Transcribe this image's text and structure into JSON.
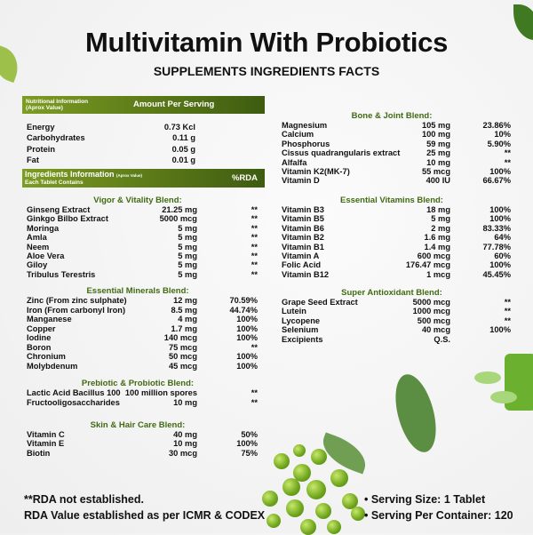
{
  "title": "Multivitamin With Probiotics",
  "subtitle": "SUPPLEMENTS INGREDIENTS FACTS",
  "nutrition_header": {
    "label_line1": "Nutritional Information",
    "label_line2": "(Aprox Value)",
    "amount_label": "Amount Per Serving"
  },
  "nutrition": [
    {
      "name": "Energy",
      "amount": "0.73 Kcl"
    },
    {
      "name": "Carbohydrates",
      "amount": "0.11 g"
    },
    {
      "name": "Protein",
      "amount": "0.05 g"
    },
    {
      "name": "Fat",
      "amount": "0.01 g"
    }
  ],
  "ingredients_header": {
    "label": "Ingredients  Information",
    "note": "(Aprox Value)",
    "sub": "Each Tablet Contains",
    "rda_label": "%RDA"
  },
  "blends": [
    {
      "title": "Vigor & Vitality Blend:",
      "items": [
        [
          "Ginseng Extract",
          "21.25 mg",
          "**"
        ],
        [
          "Ginkgo Bilbo Extract",
          "5000 mcg",
          "**"
        ],
        [
          "Moringa",
          "5 mg",
          "**"
        ],
        [
          "Amla",
          "5 mg",
          "**"
        ],
        [
          "Neem",
          "5 mg",
          "**"
        ],
        [
          "Aloe Vera",
          "5 mg",
          "**"
        ],
        [
          "Giloy",
          "5 mg",
          "**"
        ],
        [
          "Tribulus Terestris",
          "5 mg",
          "**"
        ]
      ]
    },
    {
      "title": "Essential Minerals Blend:",
      "items": [
        [
          "Zinc (From zinc sulphate)",
          "12 mg",
          "70.59%"
        ],
        [
          "Iron (From carbonyl Iron)",
          "8.5 mg",
          "44.74%"
        ],
        [
          "Manganese",
          "4 mg",
          "100%"
        ],
        [
          "Copper",
          "1.7 mg",
          "100%"
        ],
        [
          "Iodine",
          "140 mcg",
          "100%"
        ],
        [
          "Boron",
          "75 mcg",
          "**"
        ],
        [
          "Chronium",
          "50 mcg",
          "100%"
        ],
        [
          "Molybdenum",
          "45 mcg",
          "100%"
        ]
      ]
    },
    {
      "title": "Prebiotic & Probiotic Blend:",
      "items": [
        [
          "Lactic Acid Bacillus 100",
          "100 million spores",
          "**"
        ],
        [
          "Fructooligosaccharides",
          "10 mg",
          "**"
        ]
      ]
    },
    {
      "title": "Skin & Hair Care Blend:",
      "items": [
        [
          "Vitamin C",
          "40 mg",
          "50%"
        ],
        [
          "Vitamin E",
          "10 mg",
          "100%"
        ],
        [
          "Biotin",
          "30 mcg",
          "75%"
        ]
      ]
    },
    {
      "title": "Bone & Joint Blend:",
      "items": [
        [
          "Magnesium",
          "105 mg",
          "23.86%"
        ],
        [
          "Calcium",
          "100 mg",
          "10%"
        ],
        [
          "Phosphorus",
          "59 mg",
          "5.90%"
        ],
        [
          "Cissus quadrangularis extract",
          "25 mg",
          "**"
        ],
        [
          "Alfalfa",
          "10 mg",
          "**"
        ],
        [
          "Vitamin K2(MK-7)",
          "55 mcg",
          "100%"
        ],
        [
          "Vitamin D",
          "400 IU",
          "66.67%"
        ]
      ]
    },
    {
      "title": "Essential Vitamins Blend:",
      "items": [
        [
          "Vitamin B3",
          "18 mg",
          "100%"
        ],
        [
          "Vitamin B5",
          "5 mg",
          "100%"
        ],
        [
          "Vitamin B6",
          "2 mg",
          "83.33%"
        ],
        [
          "Vitamin B2",
          "1.6 mg",
          "64%"
        ],
        [
          "Vitamin B1",
          "1.4 mg",
          "77.78%"
        ],
        [
          "Vitamin A",
          "600 mcg",
          "60%"
        ],
        [
          "Folic Acid",
          "176.47 mcg",
          "100%"
        ],
        [
          "Vitamin B12",
          "1 mcg",
          "45.45%"
        ]
      ]
    },
    {
      "title": "Super Antioxidant Blend:",
      "items": [
        [
          "Grape Seed Extract",
          "5000 mcg",
          "**"
        ],
        [
          "Lutein",
          "1000 mcg",
          "**"
        ],
        [
          "Lycopene",
          "500 mcg",
          "**"
        ],
        [
          "Selenium",
          "40 mcg",
          "100%"
        ],
        [
          "Excipients",
          "Q.S.",
          ""
        ]
      ]
    }
  ],
  "footer": {
    "note1": "**RDA not established.",
    "note2": "RDA Value established as per ICMR & CODEX",
    "serving_size": "• Serving Size: 1 Tablet",
    "servings_per_container": "• Serving Per Container: 120"
  },
  "colors": {
    "accent": "#3f6b12",
    "bar_start": "#7d9c22",
    "bar_end": "#3e5c10"
  }
}
